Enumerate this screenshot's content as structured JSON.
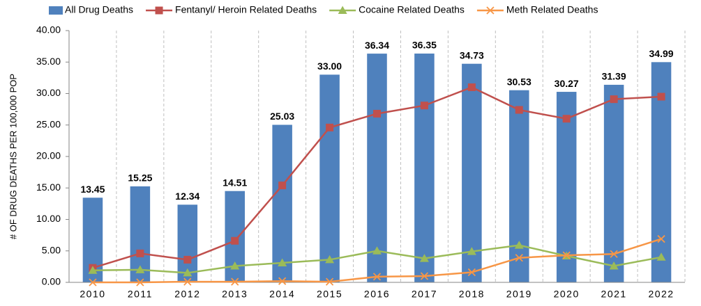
{
  "chart_data": {
    "type": "bar",
    "y_label": "# OF DRUG DEATHS PER 100,000 POP",
    "categories": [
      "2010",
      "2011",
      "2012",
      "2013",
      "2014",
      "2015",
      "2016",
      "2017",
      "2018",
      "2019",
      "2020",
      "2021",
      "2022"
    ],
    "ylim": [
      0,
      40
    ],
    "yticks": [
      {
        "value": 0,
        "label": "0.00"
      },
      {
        "value": 5,
        "label": "5.00"
      },
      {
        "value": 10,
        "label": "10.00"
      },
      {
        "value": 15,
        "label": "15.00"
      },
      {
        "value": 20,
        "label": "20.00"
      },
      {
        "value": 25,
        "label": "25.00"
      },
      {
        "value": 30,
        "label": "30.00"
      },
      {
        "value": 35,
        "label": "35.00"
      },
      {
        "value": 40,
        "label": "40.00"
      }
    ],
    "grid": "x",
    "series": [
      {
        "name": "All Drug Deaths",
        "type": "bar",
        "color": "#4f81bd",
        "values": [
          13.45,
          15.25,
          12.34,
          14.51,
          25.03,
          33.0,
          36.34,
          36.35,
          34.73,
          30.53,
          30.27,
          31.39,
          34.99
        ],
        "value_labels": [
          "13.45",
          "15.25",
          "12.34",
          "14.51",
          "25.03",
          "33.00",
          "36.34",
          "36.35",
          "34.73",
          "30.53",
          "30.27",
          "31.39",
          "34.99"
        ]
      },
      {
        "name": "Fentanyl/ Heroin Related Deaths",
        "type": "line",
        "marker": "square",
        "color": "#c0504d",
        "values": [
          2.3,
          4.6,
          3.6,
          6.6,
          15.4,
          24.6,
          26.8,
          28.1,
          31.0,
          27.4,
          26.0,
          29.1,
          29.5
        ]
      },
      {
        "name": "Cocaine Related Deaths",
        "type": "line",
        "marker": "triangle",
        "color": "#9bbb59",
        "values": [
          1.9,
          2.0,
          1.5,
          2.6,
          3.1,
          3.6,
          5.0,
          3.8,
          4.9,
          5.9,
          4.2,
          2.6,
          4.0
        ]
      },
      {
        "name": "Meth Related Deaths",
        "type": "line",
        "marker": "x",
        "color": "#f79646",
        "values": [
          0,
          0,
          0.1,
          0.1,
          0.2,
          0.1,
          0.9,
          1.0,
          1.6,
          3.9,
          4.3,
          4.5,
          6.9
        ]
      }
    ]
  }
}
